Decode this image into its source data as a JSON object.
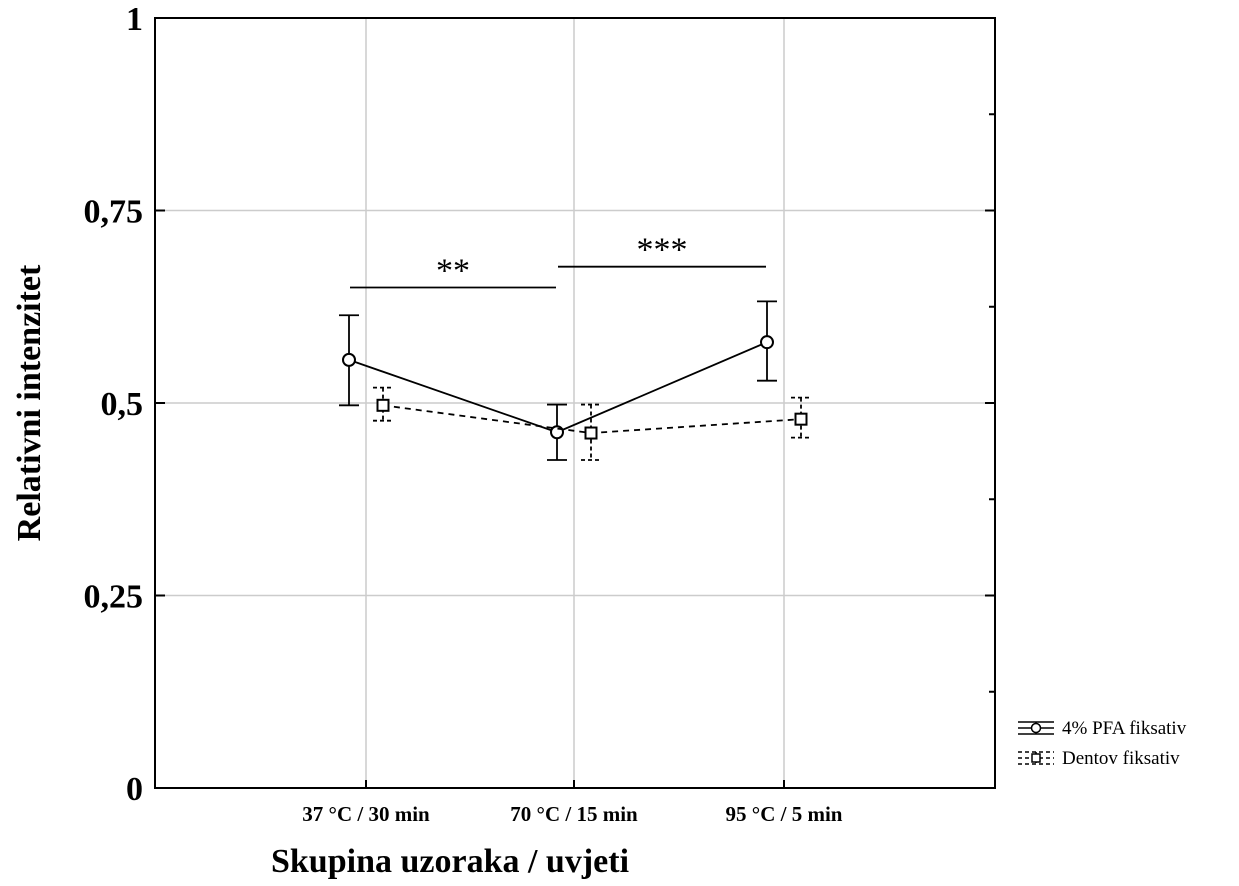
{
  "chart_data": {
    "type": "line",
    "title": "",
    "xlabel": "Skupina uzoraka / uvjeti",
    "ylabel": "Relativni intenzitet",
    "categories": [
      "37 °C / 30 min",
      "70 °C / 15 min",
      "95 °C / 5 min"
    ],
    "ylim": [
      0,
      1
    ],
    "yticks": [
      0,
      0.25,
      0.5,
      0.75,
      1
    ],
    "ytick_labels": [
      "0",
      "0,25",
      "0,5",
      "0,75",
      "1"
    ],
    "grid": true,
    "legend_position": "bottom-right, outside",
    "series": [
      {
        "name": "4% PFA fiksativ",
        "marker": "circle",
        "linestyle": "solid",
        "color": "#000000",
        "values": [
          0.556,
          0.462,
          0.579
        ],
        "err_low": [
          0.497,
          0.426,
          0.529
        ],
        "err_high": [
          0.614,
          0.498,
          0.632
        ]
      },
      {
        "name": "Dentov fiksativ",
        "marker": "square",
        "linestyle": "dashed",
        "color": "#000000",
        "values": [
          0.497,
          0.461,
          0.479
        ],
        "err_low": [
          0.477,
          0.426,
          0.455
        ],
        "err_high": [
          0.52,
          0.498,
          0.507
        ]
      }
    ],
    "annotations": [
      {
        "text": "**",
        "from_category": 0,
        "to_category": 1,
        "y": 0.65
      },
      {
        "text": "***",
        "from_category": 1,
        "to_category": 2,
        "y": 0.677
      }
    ]
  }
}
